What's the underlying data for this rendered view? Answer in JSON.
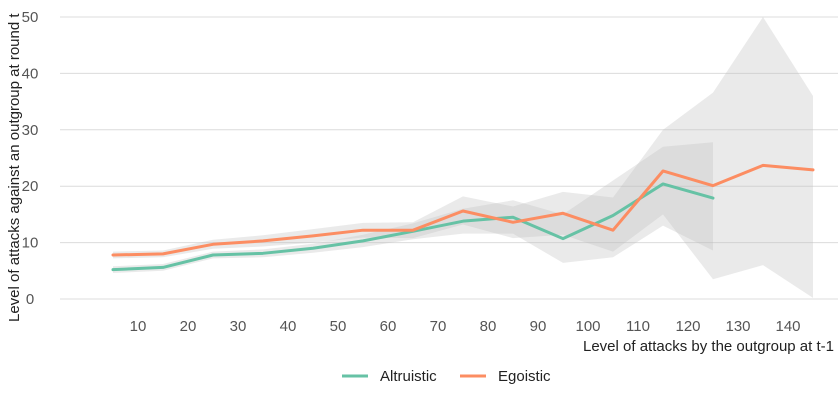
{
  "chart_data": {
    "type": "line",
    "xlabel": "Level of attacks by the outgroup at t-1",
    "ylabel": "Level of attacks against an outgroup at round t",
    "x_ticks": [
      10,
      20,
      30,
      40,
      50,
      60,
      70,
      80,
      90,
      100,
      110,
      120,
      130,
      140
    ],
    "y_ticks": [
      0,
      10,
      20,
      30,
      40,
      50
    ],
    "xlim": [
      0,
      150
    ],
    "ylim": [
      0,
      50
    ],
    "grid": "horizontal",
    "legend_position": "bottom",
    "series": [
      {
        "name": "Altruistic",
        "color": "#66c2a5",
        "x": [
          5,
          15,
          25,
          35,
          45,
          55,
          65,
          75,
          85,
          95,
          105,
          115,
          125
        ],
        "y": [
          5.2,
          5.6,
          7.8,
          8.1,
          9.0,
          10.3,
          12.0,
          13.8,
          14.5,
          10.7,
          14.8,
          20.4,
          17.9
        ],
        "ci_low": [
          4.6,
          5.0,
          7.2,
          7.4,
          8.2,
          9.2,
          10.6,
          11.6,
          11.6,
          6.4,
          7.4,
          13.0,
          8.6
        ],
        "ci_high": [
          5.8,
          6.2,
          8.4,
          8.8,
          9.8,
          11.4,
          13.4,
          16.0,
          17.5,
          15.0,
          21.0,
          27.0,
          27.8
        ]
      },
      {
        "name": "Egoistic",
        "color": "#fc8d62",
        "x": [
          5,
          15,
          25,
          35,
          45,
          55,
          65,
          75,
          85,
          95,
          105,
          115,
          125,
          135,
          145
        ],
        "y": [
          7.8,
          8.0,
          9.7,
          10.3,
          11.2,
          12.2,
          12.2,
          15.6,
          13.6,
          15.2,
          12.2,
          22.7,
          20.1,
          23.7,
          22.9
        ],
        "ci_low": [
          7.2,
          7.4,
          8.9,
          9.3,
          10.0,
          10.9,
          10.8,
          13.2,
          10.8,
          11.4,
          8.4,
          15.0,
          3.5,
          6.0,
          0.2
        ],
        "ci_high": [
          8.4,
          8.6,
          10.5,
          11.3,
          12.4,
          13.5,
          13.6,
          18.2,
          16.4,
          19.0,
          18.0,
          30.0,
          36.6,
          50.0,
          36.0
        ]
      }
    ]
  }
}
